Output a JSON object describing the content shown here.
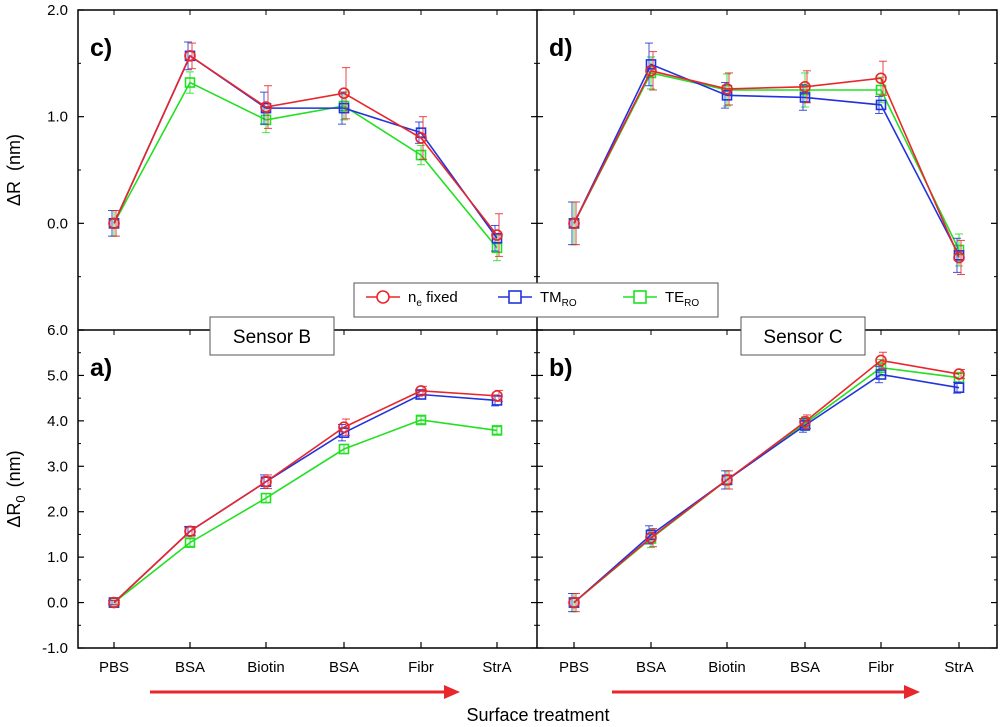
{
  "chart_data": {
    "type": "line",
    "xlabel": "Surface treatment",
    "categories": [
      "PBS",
      "BSA",
      "Biotin",
      "BSA",
      "Fibr",
      "StrA"
    ],
    "legend": {
      "placement": "center",
      "entries": [
        {
          "key": "ne",
          "label_main": "n",
          "label_sub": "e",
          "label_rest": " fixed",
          "color": "#e8262b",
          "marker": "circle"
        },
        {
          "key": "tm",
          "label_main": "TM",
          "label_sub": "RO",
          "label_rest": "",
          "color": "#2233dd",
          "marker": "square"
        },
        {
          "key": "te",
          "label_main": "TE",
          "label_sub": "RO",
          "label_rest": "",
          "color": "#22e022",
          "marker": "square"
        }
      ]
    },
    "sensor_labels": [
      "Sensor B",
      "Sensor C"
    ],
    "panels": [
      {
        "id": "c",
        "label": "c)",
        "ylabel_main": "ΔR",
        "ylabel_sub": "",
        "ylabel_unit": "(nm)",
        "ylim": [
          -1.0,
          2.0
        ],
        "yticks": [
          "2.0",
          "1.0",
          "0.0"
        ],
        "ytick_values": [
          2.0,
          1.0,
          0.0
        ],
        "series": [
          {
            "key": "ne",
            "values": [
              0.0,
              1.57,
              1.09,
              1.22,
              0.8,
              -0.11
            ],
            "errors": [
              0.12,
              0.12,
              0.2,
              0.24,
              0.2,
              0.2
            ]
          },
          {
            "key": "tm",
            "values": [
              0.0,
              1.57,
              1.08,
              1.08,
              0.85,
              -0.14
            ],
            "errors": [
              0.12,
              0.13,
              0.15,
              0.15,
              0.1,
              0.12
            ]
          },
          {
            "key": "te",
            "values": [
              0.0,
              1.32,
              0.97,
              1.1,
              0.64,
              -0.23
            ],
            "errors": [
              0.12,
              0.1,
              0.12,
              0.13,
              0.09,
              0.12
            ]
          }
        ]
      },
      {
        "id": "d",
        "label": "d)",
        "ylabel_main": "",
        "ylabel_sub": "",
        "ylabel_unit": "",
        "ylim": [
          -1.0,
          2.0
        ],
        "yticks": [],
        "ytick_values": [],
        "series": [
          {
            "key": "ne",
            "values": [
              0.0,
              1.43,
              1.26,
              1.28,
              1.36,
              -0.32
            ],
            "errors": [
              0.2,
              0.18,
              0.15,
              0.15,
              0.16,
              0.16
            ]
          },
          {
            "key": "tm",
            "values": [
              0.0,
              1.49,
              1.2,
              1.18,
              1.11,
              -0.3
            ],
            "errors": [
              0.2,
              0.2,
              0.12,
              0.12,
              0.08,
              0.16
            ]
          },
          {
            "key": "te",
            "values": [
              0.0,
              1.41,
              1.25,
              1.25,
              1.25,
              -0.25
            ],
            "errors": [
              0.2,
              0.15,
              0.15,
              0.16,
              0.12,
              0.15
            ]
          }
        ]
      },
      {
        "id": "a",
        "label": "a)",
        "ylabel_main": "ΔR",
        "ylabel_sub": "0",
        "ylabel_unit": "(nm)",
        "ylim": [
          -1.0,
          6.0
        ],
        "yticks": [
          "6.0",
          "5.0",
          "4.0",
          "3.0",
          "2.0",
          "1.0",
          "0.0",
          "-1.0"
        ],
        "ytick_values": [
          6.0,
          5.0,
          4.0,
          3.0,
          2.0,
          1.0,
          0.0,
          -1.0
        ],
        "series": [
          {
            "key": "ne",
            "values": [
              0.0,
              1.57,
              2.66,
              3.86,
              4.66,
              4.55
            ],
            "errors": [
              0.05,
              0.1,
              0.15,
              0.18,
              0.1,
              0.12
            ]
          },
          {
            "key": "tm",
            "values": [
              0.0,
              1.57,
              2.66,
              3.74,
              4.58,
              4.45
            ],
            "errors": [
              0.05,
              0.1,
              0.15,
              0.18,
              0.1,
              0.12
            ]
          },
          {
            "key": "te",
            "values": [
              0.0,
              1.32,
              2.3,
              3.38,
              4.02,
              3.79
            ],
            "errors": [
              0.05,
              0.08,
              0.1,
              0.1,
              0.08,
              0.08
            ]
          }
        ]
      },
      {
        "id": "b",
        "label": "b)",
        "ylabel_main": "",
        "ylabel_sub": "",
        "ylabel_unit": "",
        "ylim": [
          -1.0,
          6.0
        ],
        "yticks": [],
        "ytick_values": [],
        "series": [
          {
            "key": "ne",
            "values": [
              0.0,
              1.43,
              2.7,
              3.98,
              5.33,
              5.03
            ],
            "errors": [
              0.2,
              0.2,
              0.2,
              0.15,
              0.18,
              0.1
            ]
          },
          {
            "key": "tm",
            "values": [
              0.0,
              1.49,
              2.7,
              3.9,
              5.02,
              4.73
            ],
            "errors": [
              0.2,
              0.2,
              0.2,
              0.15,
              0.18,
              0.12
            ]
          },
          {
            "key": "te",
            "values": [
              0.0,
              1.41,
              2.7,
              3.94,
              5.17,
              4.95
            ],
            "errors": [
              0.2,
              0.2,
              0.2,
              0.15,
              0.18,
              0.12
            ]
          }
        ]
      }
    ]
  },
  "colors": {
    "arrow": "#e8262b",
    "frame": "#000000"
  }
}
